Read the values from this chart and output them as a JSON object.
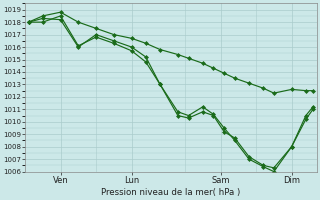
{
  "xlabel": "Pression niveau de la mer( hPa )",
  "bg_color": "#cce8e8",
  "grid_color": "#aacccc",
  "line_color": "#1a6b1a",
  "ylim_min": 1006,
  "ylim_max": 1019.5,
  "xlim_min": 0.0,
  "xlim_max": 8.2,
  "xtick_positions": [
    1.0,
    3.0,
    5.5,
    7.5
  ],
  "xtick_labels": [
    "Ven",
    "Lun",
    "Sam",
    "Dim"
  ],
  "line1_x": [
    0.1,
    0.5,
    1.0,
    1.5,
    2.0,
    2.5,
    3.0,
    3.4,
    3.8,
    4.3,
    4.6,
    5.0,
    5.3,
    5.6,
    5.9,
    6.3,
    6.7,
    7.0,
    7.5,
    7.9,
    8.1
  ],
  "line1_y": [
    1018.0,
    1018.3,
    1018.2,
    1016.0,
    1017.0,
    1016.5,
    1016.0,
    1015.2,
    1013.0,
    1010.5,
    1010.3,
    1010.8,
    1010.5,
    1009.2,
    1008.7,
    1007.2,
    1006.5,
    1006.3,
    1008.0,
    1010.5,
    1011.2
  ],
  "line2_x": [
    0.1,
    0.5,
    1.0,
    1.5,
    2.0,
    2.5,
    3.0,
    3.4,
    3.8,
    4.3,
    4.6,
    5.0,
    5.3,
    5.6,
    5.9,
    6.3,
    6.7,
    7.0,
    7.5,
    7.9,
    8.1
  ],
  "line2_y": [
    1018.0,
    1018.5,
    1018.8,
    1018.0,
    1017.5,
    1017.0,
    1016.7,
    1016.3,
    1015.8,
    1015.4,
    1015.1,
    1014.7,
    1014.3,
    1013.9,
    1013.5,
    1013.1,
    1012.7,
    1012.3,
    1012.6,
    1012.5,
    1012.5
  ],
  "line3_x": [
    0.1,
    0.5,
    1.0,
    1.5,
    2.0,
    2.5,
    3.0,
    3.4,
    3.8,
    4.3,
    4.6,
    5.0,
    5.3,
    5.6,
    5.9,
    6.3,
    6.7,
    7.0,
    7.5,
    7.9,
    8.1
  ],
  "line3_y": [
    1018.0,
    1018.0,
    1018.5,
    1016.1,
    1016.8,
    1016.3,
    1015.7,
    1014.8,
    1013.0,
    1010.8,
    1010.5,
    1011.2,
    1010.6,
    1009.5,
    1008.5,
    1007.0,
    1006.4,
    1006.0,
    1008.0,
    1010.2,
    1011.0
  ]
}
